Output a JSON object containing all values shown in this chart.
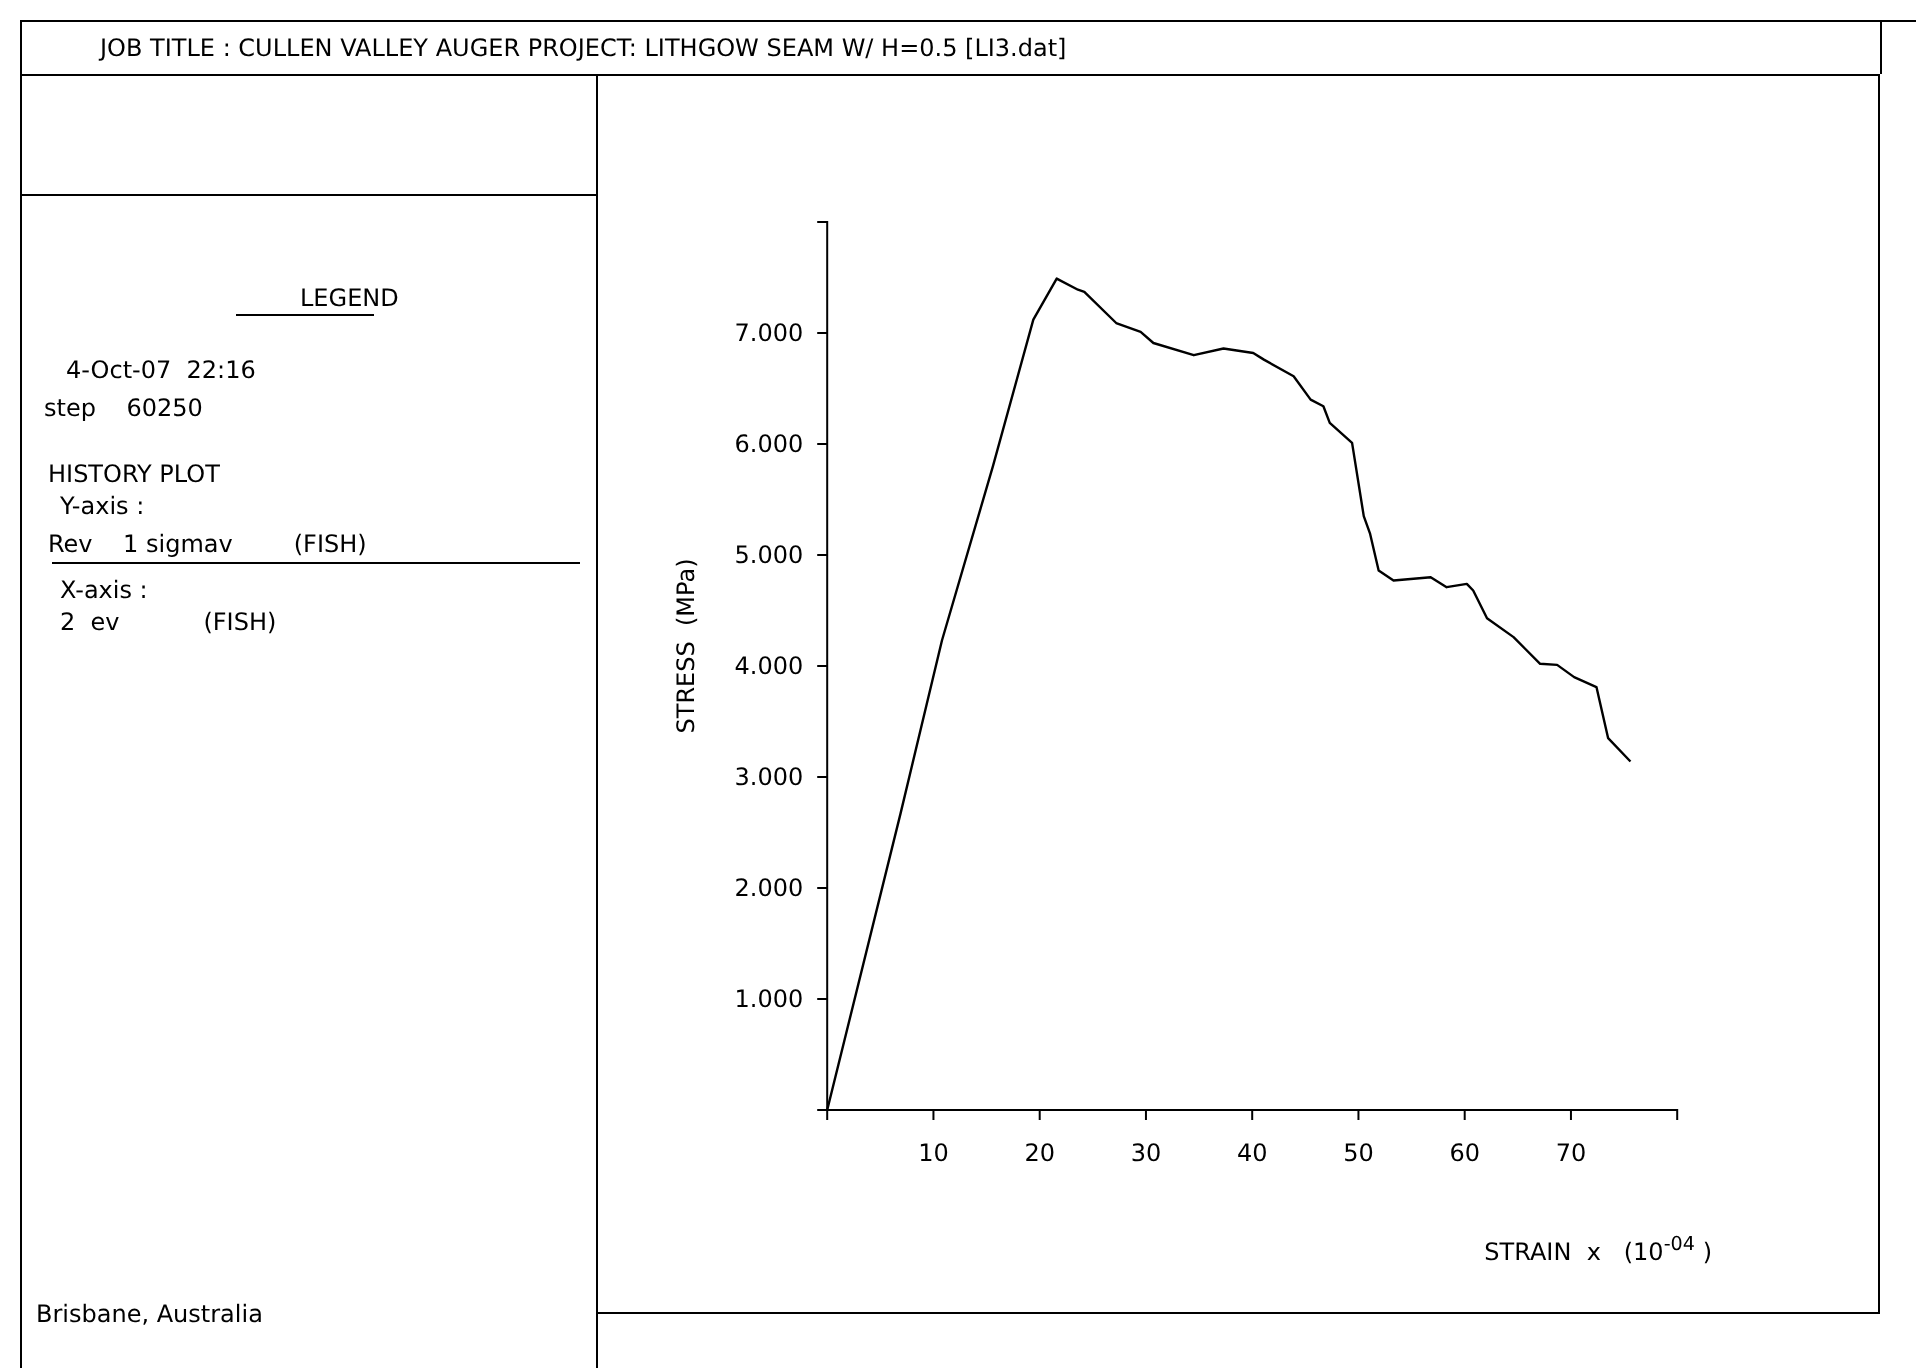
{
  "chart_data": {
    "type": "line",
    "title": "JOB TITLE :   CULLEN VALLEY AUGER PROJECT: LITHGOW SEAM  W/  H=0.5  [LI3.dat]",
    "xlabel": "STRAIN  x   (10$^{-04}$ )",
    "ylabel": "STRESS  (MPa)",
    "annotations": [
      "LEGEND",
      "4-Oct-07  22:16",
      "step    60250",
      "HISTORY PLOT",
      "Y-axis :",
      "Rev    1 sigmav        (FISH)",
      "X-axis :",
      "2  ev           (FISH)",
      "Brisbane, Australia"
    ],
    "xlim": [
      0,
      80
    ],
    "ylim": [
      0,
      8
    ],
    "xticks": [
      10,
      20,
      30,
      40,
      50,
      60,
      70
    ],
    "yticks": [
      {
        "value": 1,
        "label": "1.000"
      },
      {
        "value": 2,
        "label": "2.000"
      },
      {
        "value": 3,
        "label": "3.000"
      },
      {
        "value": 4,
        "label": "4.000"
      },
      {
        "value": 5,
        "label": "5.000"
      },
      {
        "value": 6,
        "label": "6.000"
      },
      {
        "value": 7,
        "label": "7.000"
      }
    ],
    "grid": false,
    "marker": "none",
    "line_style": "solid",
    "series": [
      {
        "color": "#000000",
        "x": [
          0,
          6.9,
          10.8,
          15.6,
          19.4,
          21.6,
          23.6,
          24.2,
          27.2,
          29.5,
          30.7,
          34.5,
          37.3,
          40.1,
          41.1,
          43.9,
          45.5,
          46.7,
          47.3,
          49.4,
          50.5,
          51.1,
          51.9,
          53.3,
          56.8,
          58.3,
          60.2,
          60.8,
          62.1,
          64.6,
          67.1,
          68.7,
          70.3,
          72.4,
          73.5,
          75.6
        ],
        "values": [
          0,
          2.67,
          4.23,
          5.8,
          7.12,
          7.49,
          7.39,
          7.37,
          7.09,
          7.01,
          6.91,
          6.8,
          6.86,
          6.82,
          6.76,
          6.61,
          6.4,
          6.34,
          6.19,
          6.01,
          5.35,
          5.19,
          4.86,
          4.77,
          4.8,
          4.71,
          4.74,
          4.68,
          4.43,
          4.26,
          4.02,
          4.01,
          3.9,
          3.81,
          3.35,
          3.14
        ]
      }
    ]
  }
}
